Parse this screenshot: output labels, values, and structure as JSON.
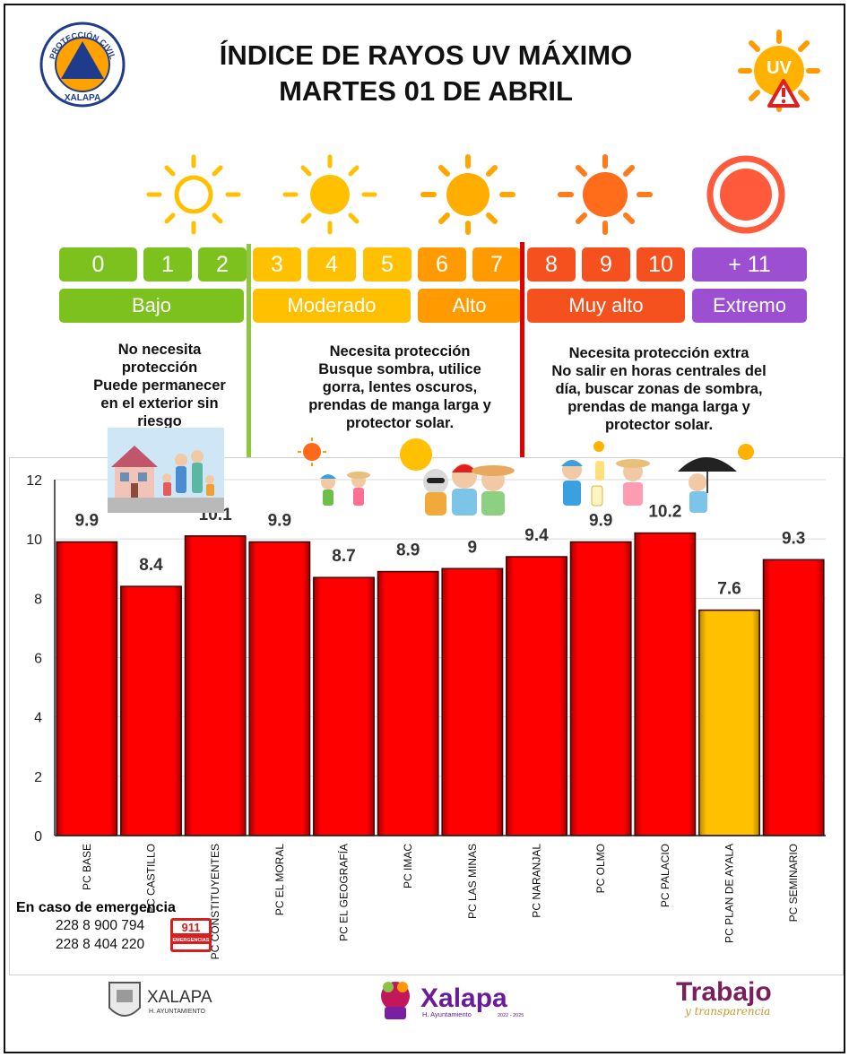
{
  "header": {
    "title_line1": "ÍNDICE DE RAYOS UV MÁXIMO",
    "title_line2": "MARTES 01 DE ABRIL",
    "logo_left_top": "PROTECCIÓN CIVIL",
    "logo_left_bottom": "XALAPA",
    "logo_right_text": "UV"
  },
  "scale": {
    "numbers": [
      "0",
      "1",
      "2",
      "3",
      "4",
      "5",
      "6",
      "7",
      "8",
      "9",
      "10",
      "+ 11"
    ],
    "levels": [
      {
        "label": "Bajo",
        "color": "#7dc11f"
      },
      {
        "label": "Moderado",
        "color": "#ffc000"
      },
      {
        "label": "Alto",
        "color": "#ff9a00"
      },
      {
        "label": "Muy alto",
        "color": "#f4511e"
      },
      {
        "label": "Extremo",
        "color": "#9c4fd1"
      }
    ]
  },
  "advice": {
    "low": [
      "No necesita",
      "protección",
      "Puede permanecer",
      "en el exterior sin",
      "riesgo"
    ],
    "moderate": [
      "Necesita protección",
      "Busque sombra, utilice",
      "gorra, lentes oscuros,",
      "prendas de manga larga y",
      "protector solar."
    ],
    "high": [
      "Necesita protección extra",
      "No salir en horas centrales del",
      "día, buscar zonas de sombra,",
      "prendas de manga larga y",
      "protector solar."
    ]
  },
  "colors": {
    "bar_red": "#ff0000",
    "bar_yellow": "#ffc000",
    "divider_green": "#8dc63f",
    "divider_red": "#e00000"
  },
  "chart_data": {
    "type": "bar",
    "categories": [
      "PC BASE",
      "PC CASTILLO",
      "PC CONSTITUYENTES",
      "PC EL MORAL",
      "PC EL GEOGRAFÍA",
      "PC IMAC",
      "PC LAS MINAS",
      "PC NARANJAL",
      "PC OLMO",
      "PC PALACIO",
      "PC PLAN DE AYALA",
      "PC SEMINARIO"
    ],
    "values": [
      9.9,
      8.4,
      10.1,
      9.9,
      8.7,
      8.9,
      9,
      9.4,
      9.9,
      10.2,
      7.6,
      9.3
    ],
    "value_labels": [
      "9.9",
      "8.4",
      "10.1",
      "9.9",
      "8.7",
      "8.9",
      "9",
      "9.4",
      "9.9",
      "10.2",
      "7.6",
      "9.3"
    ],
    "bar_colors": [
      "#ff0000",
      "#ff0000",
      "#ff0000",
      "#ff0000",
      "#ff0000",
      "#ff0000",
      "#ff0000",
      "#ff0000",
      "#ff0000",
      "#ff0000",
      "#ffc000",
      "#ff0000"
    ],
    "yticks": [
      "0",
      "2",
      "4",
      "6",
      "8",
      "10",
      "12"
    ],
    "ylim": [
      0,
      12
    ],
    "grid": true
  },
  "emergency": {
    "title": "En caso de emergencia",
    "phone1": "228 8 900 794",
    "phone2": "228 8 404 220",
    "badge_number": "911",
    "badge_label": "EMERGENCIAS"
  },
  "footer": {
    "logo1_title": "XALAPA",
    "logo1_sub": "H. AYUNTAMIENTO",
    "logo2_title": "Xalapa",
    "logo2_sub": "H. Ayuntamiento",
    "logo2_years": "2022 - 2025",
    "logo3_title": "Trabajo",
    "logo3_sub": "y transparencia"
  }
}
